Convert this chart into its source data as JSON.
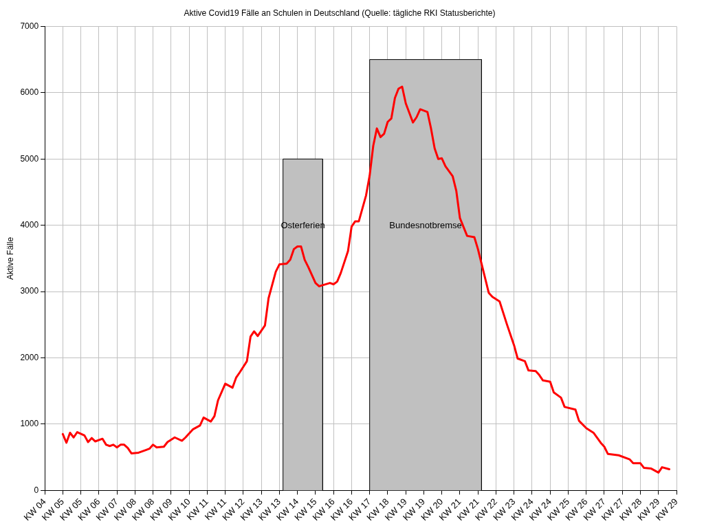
{
  "chart_data": {
    "type": "line",
    "title": "Aktive Covid19 Fälle an Schulen in Deutschland (Quelle: tägliche RKI Statusberichte)",
    "ylabel": "Aktive Fälle",
    "xlim": [
      "--01-28",
      "--07-22"
    ],
    "xticks": [
      {
        "value": "--01-28",
        "label": "KW 04"
      },
      {
        "value": "--02-02",
        "label": "KW 05"
      },
      {
        "value": "--02-07",
        "label": "KW 05"
      },
      {
        "value": "--02-12",
        "label": "KW 06"
      },
      {
        "value": "--02-17",
        "label": "KW 07"
      },
      {
        "value": "--02-22",
        "label": "KW 08"
      },
      {
        "value": "--02-27",
        "label": "KW 08"
      },
      {
        "value": "--03-04",
        "label": "KW 09"
      },
      {
        "value": "--03-09",
        "label": "KW 10"
      },
      {
        "value": "--03-14",
        "label": "KW 11"
      },
      {
        "value": "--03-19",
        "label": "KW 11"
      },
      {
        "value": "--03-24",
        "label": "KW 12"
      },
      {
        "value": "--03-29",
        "label": "KW 13"
      },
      {
        "value": "--04-03",
        "label": "KW 13"
      },
      {
        "value": "--04-08",
        "label": "KW 14"
      },
      {
        "value": "--04-13",
        "label": "KW 15"
      },
      {
        "value": "--04-18",
        "label": "KW 16"
      },
      {
        "value": "--04-23",
        "label": "KW 16"
      },
      {
        "value": "--04-28",
        "label": "KW 17"
      },
      {
        "value": "--05-03",
        "label": "KW 18"
      },
      {
        "value": "--05-08",
        "label": "KW 19"
      },
      {
        "value": "--05-13",
        "label": "KW 19"
      },
      {
        "value": "--05-18",
        "label": "KW 20"
      },
      {
        "value": "--05-23",
        "label": "KW 21"
      },
      {
        "value": "--05-28",
        "label": "KW 21"
      },
      {
        "value": "--06-02",
        "label": "KW 22"
      },
      {
        "value": "--06-07",
        "label": "KW 23"
      },
      {
        "value": "--06-12",
        "label": "KW 24"
      },
      {
        "value": "--06-17",
        "label": "KW 24"
      },
      {
        "value": "--06-22",
        "label": "KW 25"
      },
      {
        "value": "--06-27",
        "label": "KW 26"
      },
      {
        "value": "--07-02",
        "label": "KW 27"
      },
      {
        "value": "--07-07",
        "label": "KW 27"
      },
      {
        "value": "--07-12",
        "label": "KW 28"
      },
      {
        "value": "--07-17",
        "label": "KW 29"
      },
      {
        "value": "--07-22",
        "label": "KW 29"
      }
    ],
    "ylim": [
      0,
      7000
    ],
    "yticks": [
      0,
      1000,
      2000,
      3000,
      4000,
      5000,
      6000,
      7000
    ],
    "grid": true,
    "legend": false,
    "marker": "none",
    "line_style": "solid",
    "series": [
      {
        "type": "area",
        "name": "Osterferien",
        "color": "#c0c0c0",
        "x": [
          "--04-04",
          "--04-04",
          "--04-15",
          "--04-15"
        ],
        "values": [
          0,
          5000,
          5000,
          0
        ]
      },
      {
        "type": "area",
        "name": "Bundesnotbremse",
        "color": "#c0c0c0",
        "x": [
          "--04-28",
          "--04-28",
          "--05-29",
          "--05-29"
        ],
        "values": [
          0,
          6500,
          6500,
          0
        ]
      },
      {
        "color": "#ff0000",
        "x": [
          "--02-02",
          "--02-03",
          "--02-04",
          "--02-05",
          "--02-06",
          "--02-08",
          "--02-09",
          "--02-10",
          "--02-11",
          "--02-13",
          "--02-14",
          "--02-15",
          "--02-16",
          "--02-17",
          "--02-18",
          "--02-19",
          "--02-20",
          "--02-21",
          "--02-23",
          "--02-25",
          "--02-26",
          "--02-27",
          "--02-28",
          "--03-02",
          "--03-03",
          "--03-05",
          "--03-07",
          "--03-08",
          "--03-10",
          "--03-12",
          "--03-13",
          "--03-15",
          "--03-16",
          "--03-17",
          "--03-19",
          "--03-21",
          "--03-22",
          "--03-23",
          "--03-25",
          "--03-26",
          "--03-27",
          "--03-28",
          "--03-30",
          "--03-31",
          "--04-02",
          "--04-03",
          "--04-05",
          "--04-06",
          "--04-07",
          "--04-08",
          "--04-09",
          "--04-10",
          "--04-11",
          "--04-13",
          "--04-14",
          "--04-17",
          "--04-18",
          "--04-19",
          "--04-20",
          "--04-22",
          "--04-23",
          "--04-24",
          "--04-25",
          "--04-27",
          "--04-28",
          "--04-29",
          "--04-30",
          "--05-01",
          "--05-02",
          "--05-03",
          "--05-04",
          "--05-05",
          "--05-06",
          "--05-07",
          "--05-08",
          "--05-10",
          "--05-11",
          "--05-12",
          "--05-14",
          "--05-15",
          "--05-16",
          "--05-17",
          "--05-18",
          "--05-19",
          "--05-21",
          "--05-22",
          "--05-23",
          "--05-25",
          "--05-27",
          "--05-28",
          "--05-30",
          "--05-31",
          "--06-01",
          "--06-03",
          "--06-05",
          "--06-07",
          "--06-08",
          "--06-10",
          "--06-11",
          "--06-13",
          "--06-14",
          "--06-15",
          "--06-17",
          "--06-18",
          "--06-20",
          "--06-21",
          "--06-24",
          "--06-25",
          "--06-27",
          "--06-29",
          "--07-01",
          "--07-02",
          "--07-03",
          "--07-06",
          "--07-09",
          "--07-10",
          "--07-12",
          "--07-13",
          "--07-15",
          "--07-17",
          "--07-18",
          "--07-20"
        ],
        "values": [
          850,
          720,
          870,
          800,
          880,
          830,
          730,
          790,
          740,
          780,
          690,
          670,
          690,
          650,
          690,
          690,
          640,
          560,
          570,
          610,
          630,
          690,
          650,
          660,
          730,
          800,
          750,
          800,
          920,
          980,
          1100,
          1040,
          1120,
          1360,
          1610,
          1550,
          1700,
          1780,
          1950,
          2320,
          2400,
          2330,
          2490,
          2900,
          3300,
          3410,
          3420,
          3480,
          3640,
          3680,
          3680,
          3480,
          3370,
          3130,
          3080,
          3130,
          3110,
          3150,
          3280,
          3610,
          3980,
          4060,
          4060,
          4450,
          4750,
          5200,
          5460,
          5330,
          5380,
          5560,
          5610,
          5920,
          6060,
          6090,
          5840,
          5550,
          5630,
          5750,
          5710,
          5460,
          5160,
          5000,
          5010,
          4890,
          4740,
          4520,
          4110,
          3840,
          3820,
          3640,
          3200,
          2980,
          2920,
          2850,
          2510,
          2190,
          1990,
          1950,
          1810,
          1800,
          1740,
          1660,
          1640,
          1480,
          1400,
          1260,
          1220,
          1050,
          940,
          870,
          720,
          660,
          550,
          530,
          470,
          410,
          410,
          340,
          330,
          270,
          350,
          320
        ]
      }
    ]
  }
}
